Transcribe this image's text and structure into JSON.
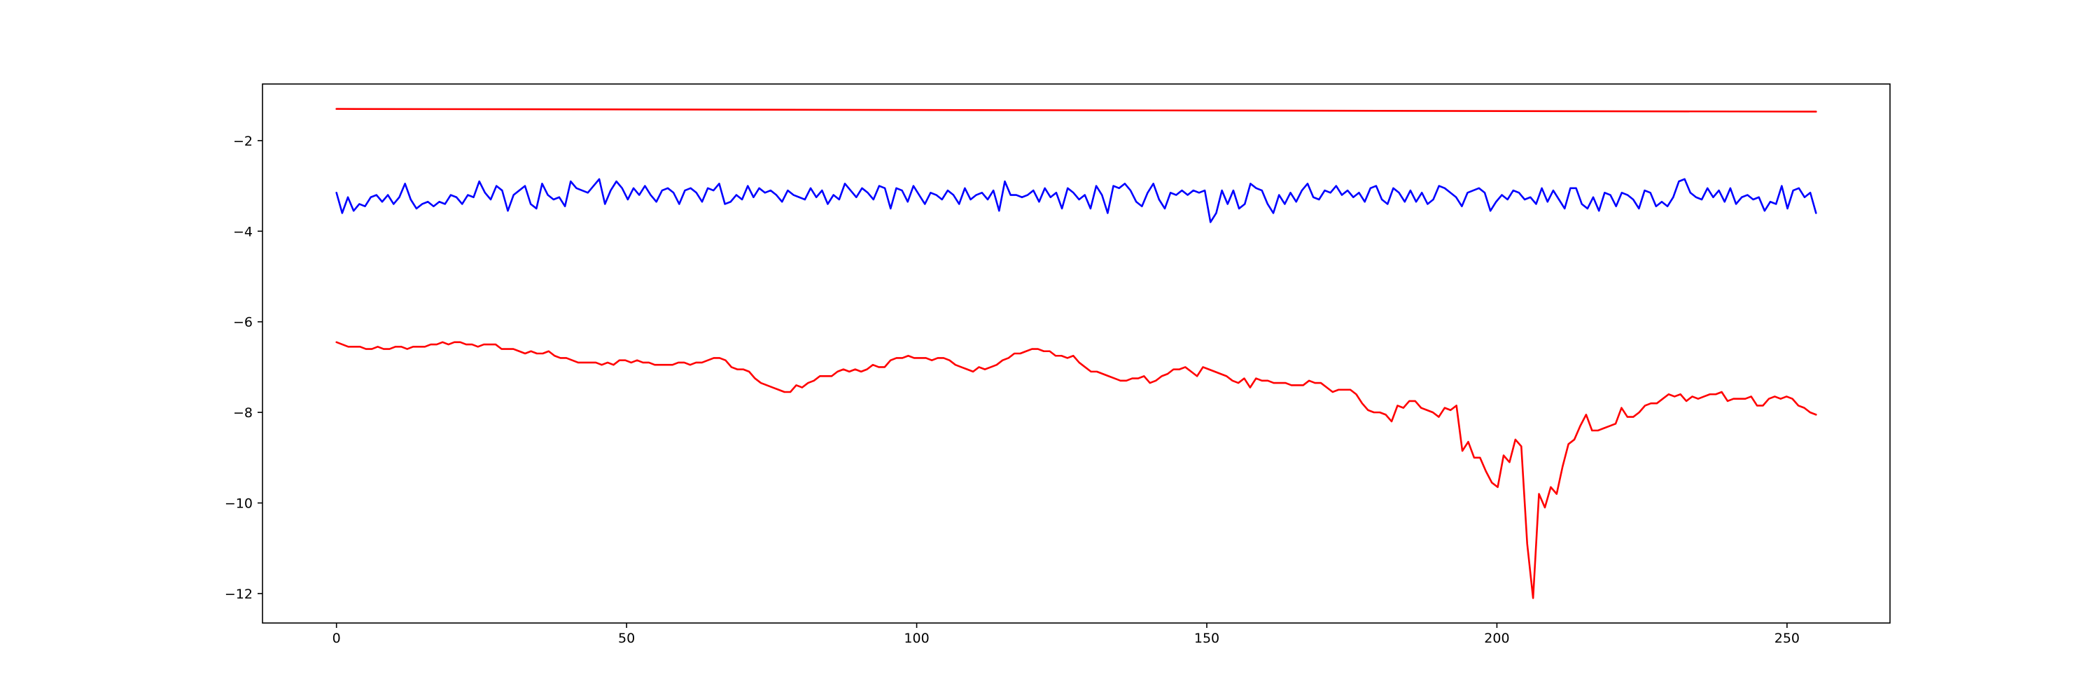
{
  "chart_data": {
    "type": "line",
    "title": "",
    "xlabel": "",
    "ylabel": "",
    "xlim": [
      -12.75,
      267.75
    ],
    "ylim": [
      -12.65,
      -0.75
    ],
    "grid": false,
    "legend": false,
    "x_ticks": [
      {
        "value": 0,
        "label": "0"
      },
      {
        "value": 50,
        "label": "50"
      },
      {
        "value": 100,
        "label": "100"
      },
      {
        "value": 150,
        "label": "150"
      },
      {
        "value": 200,
        "label": "200"
      },
      {
        "value": 250,
        "label": "250"
      }
    ],
    "y_ticks": [
      {
        "value": -2,
        "label": "−2"
      },
      {
        "value": -4,
        "label": "−4"
      },
      {
        "value": -6,
        "label": "−6"
      },
      {
        "value": -8,
        "label": "−8"
      },
      {
        "value": -10,
        "label": "−10"
      },
      {
        "value": -12,
        "label": "−12"
      }
    ],
    "series": [
      {
        "color": "#ff0000",
        "x_start": 0,
        "x_end": 255,
        "values": [
          -1.3,
          -1.36
        ]
      },
      {
        "color": "#0000ff",
        "x_start": 0,
        "x_end": 255,
        "values": [
          -3.15,
          -3.6,
          -3.25,
          -3.55,
          -3.4,
          -3.45,
          -3.25,
          -3.2,
          -3.35,
          -3.2,
          -3.4,
          -3.25,
          -2.95,
          -3.3,
          -3.5,
          -3.4,
          -3.35,
          -3.45,
          -3.35,
          -3.4,
          -3.2,
          -3.25,
          -3.4,
          -3.2,
          -3.25,
          -2.9,
          -3.15,
          -3.3,
          -3.0,
          -3.1,
          -3.55,
          -3.2,
          -3.1,
          -3.0,
          -3.4,
          -3.5,
          -2.95,
          -3.2,
          -3.3,
          -3.25,
          -3.45,
          -2.9,
          -3.05,
          -3.1,
          -3.15,
          -3.0,
          -2.85,
          -3.4,
          -3.1,
          -2.9,
          -3.05,
          -3.3,
          -3.05,
          -3.2,
          -3.0,
          -3.2,
          -3.35,
          -3.1,
          -3.05,
          -3.15,
          -3.4,
          -3.1,
          -3.05,
          -3.15,
          -3.35,
          -3.05,
          -3.1,
          -2.95,
          -3.4,
          -3.35,
          -3.2,
          -3.3,
          -3.0,
          -3.25,
          -3.05,
          -3.15,
          -3.1,
          -3.2,
          -3.35,
          -3.1,
          -3.2,
          -3.25,
          -3.3,
          -3.05,
          -3.25,
          -3.1,
          -3.4,
          -3.2,
          -3.3,
          -2.95,
          -3.1,
          -3.25,
          -3.05,
          -3.15,
          -3.3,
          -3.0,
          -3.05,
          -3.5,
          -3.05,
          -3.1,
          -3.35,
          -3.0,
          -3.2,
          -3.4,
          -3.15,
          -3.2,
          -3.3,
          -3.1,
          -3.2,
          -3.4,
          -3.05,
          -3.3,
          -3.2,
          -3.15,
          -3.3,
          -3.1,
          -3.55,
          -2.9,
          -3.2,
          -3.2,
          -3.25,
          -3.2,
          -3.1,
          -3.35,
          -3.05,
          -3.25,
          -3.15,
          -3.5,
          -3.05,
          -3.15,
          -3.3,
          -3.2,
          -3.5,
          -3.0,
          -3.2,
          -3.6,
          -3.0,
          -3.05,
          -2.95,
          -3.1,
          -3.35,
          -3.45,
          -3.15,
          -2.95,
          -3.3,
          -3.5,
          -3.15,
          -3.2,
          -3.1,
          -3.2,
          -3.1,
          -3.15,
          -3.1,
          -3.8,
          -3.6,
          -3.1,
          -3.4,
          -3.1,
          -3.5,
          -3.4,
          -2.95,
          -3.05,
          -3.1,
          -3.4,
          -3.6,
          -3.2,
          -3.4,
          -3.15,
          -3.35,
          -3.1,
          -2.95,
          -3.25,
          -3.3,
          -3.1,
          -3.15,
          -3.0,
          -3.2,
          -3.1,
          -3.25,
          -3.15,
          -3.35,
          -3.05,
          -3.0,
          -3.3,
          -3.4,
          -3.05,
          -3.15,
          -3.35,
          -3.1,
          -3.35,
          -3.15,
          -3.4,
          -3.3,
          -3.0,
          -3.05,
          -3.15,
          -3.25,
          -3.45,
          -3.15,
          -3.1,
          -3.05,
          -3.15,
          -3.55,
          -3.35,
          -3.2,
          -3.3,
          -3.1,
          -3.15,
          -3.3,
          -3.25,
          -3.4,
          -3.05,
          -3.35,
          -3.1,
          -3.3,
          -3.5,
          -3.05,
          -3.05,
          -3.4,
          -3.5,
          -3.25,
          -3.55,
          -3.15,
          -3.2,
          -3.45,
          -3.15,
          -3.2,
          -3.3,
          -3.5,
          -3.1,
          -3.15,
          -3.45,
          -3.35,
          -3.45,
          -3.25,
          -2.9,
          -2.85,
          -3.15,
          -3.25,
          -3.3,
          -3.05,
          -3.25,
          -3.1,
          -3.35,
          -3.05,
          -3.4,
          -3.25,
          -3.2,
          -3.3,
          -3.25,
          -3.55,
          -3.35,
          -3.4,
          -3.0,
          -3.5,
          -3.1,
          -3.05,
          -3.25,
          -3.15,
          -3.6
        ]
      },
      {
        "color": "#ff0000",
        "x_start": 0,
        "x_end": 255,
        "values": [
          -6.45,
          -6.5,
          -6.55,
          -6.55,
          -6.55,
          -6.6,
          -6.6,
          -6.55,
          -6.6,
          -6.6,
          -6.55,
          -6.55,
          -6.6,
          -6.55,
          -6.55,
          -6.55,
          -6.5,
          -6.5,
          -6.45,
          -6.5,
          -6.45,
          -6.45,
          -6.5,
          -6.5,
          -6.55,
          -6.5,
          -6.5,
          -6.5,
          -6.6,
          -6.6,
          -6.6,
          -6.65,
          -6.7,
          -6.65,
          -6.7,
          -6.7,
          -6.65,
          -6.75,
          -6.8,
          -6.8,
          -6.85,
          -6.9,
          -6.9,
          -6.9,
          -6.9,
          -6.95,
          -6.9,
          -6.95,
          -6.85,
          -6.85,
          -6.9,
          -6.85,
          -6.9,
          -6.9,
          -6.95,
          -6.95,
          -6.95,
          -6.95,
          -6.9,
          -6.9,
          -6.95,
          -6.9,
          -6.9,
          -6.85,
          -6.8,
          -6.8,
          -6.85,
          -7.0,
          -7.05,
          -7.05,
          -7.1,
          -7.25,
          -7.35,
          -7.4,
          -7.45,
          -7.5,
          -7.55,
          -7.55,
          -7.4,
          -7.45,
          -7.35,
          -7.3,
          -7.2,
          -7.2,
          -7.2,
          -7.1,
          -7.05,
          -7.1,
          -7.05,
          -7.1,
          -7.05,
          -6.95,
          -7.0,
          -7.0,
          -6.85,
          -6.8,
          -6.8,
          -6.75,
          -6.8,
          -6.8,
          -6.8,
          -6.85,
          -6.8,
          -6.8,
          -6.85,
          -6.95,
          -7.0,
          -7.05,
          -7.1,
          -7.0,
          -7.05,
          -7.0,
          -6.95,
          -6.85,
          -6.8,
          -6.7,
          -6.7,
          -6.65,
          -6.6,
          -6.6,
          -6.65,
          -6.65,
          -6.75,
          -6.75,
          -6.8,
          -6.75,
          -6.9,
          -7.0,
          -7.1,
          -7.1,
          -7.15,
          -7.2,
          -7.25,
          -7.3,
          -7.3,
          -7.25,
          -7.25,
          -7.2,
          -7.35,
          -7.3,
          -7.2,
          -7.15,
          -7.05,
          -7.05,
          -7.0,
          -7.1,
          -7.2,
          -7.0,
          -7.05,
          -7.1,
          -7.15,
          -7.2,
          -7.3,
          -7.35,
          -7.25,
          -7.45,
          -7.25,
          -7.3,
          -7.3,
          -7.35,
          -7.35,
          -7.35,
          -7.4,
          -7.4,
          -7.4,
          -7.3,
          -7.35,
          -7.35,
          -7.45,
          -7.55,
          -7.5,
          -7.5,
          -7.5,
          -7.6,
          -7.8,
          -7.95,
          -8.0,
          -8.0,
          -8.05,
          -8.2,
          -7.85,
          -7.9,
          -7.75,
          -7.75,
          -7.9,
          -7.95,
          -8.0,
          -8.1,
          -7.9,
          -7.95,
          -7.85,
          -8.85,
          -8.65,
          -9.0,
          -9.0,
          -9.3,
          -9.55,
          -9.65,
          -8.95,
          -9.1,
          -8.6,
          -8.75,
          -10.9,
          -12.1,
          -9.8,
          -10.1,
          -9.65,
          -9.8,
          -9.2,
          -8.7,
          -8.6,
          -8.3,
          -8.05,
          -8.4,
          -8.4,
          -8.35,
          -8.3,
          -8.25,
          -7.9,
          -8.1,
          -8.1,
          -8.0,
          -7.85,
          -7.8,
          -7.8,
          -7.7,
          -7.6,
          -7.65,
          -7.6,
          -7.75,
          -7.65,
          -7.7,
          -7.65,
          -7.6,
          -7.6,
          -7.55,
          -7.75,
          -7.7,
          -7.7,
          -7.7,
          -7.65,
          -7.85,
          -7.85,
          -7.7,
          -7.65,
          -7.7,
          -7.65,
          -7.7,
          -7.85,
          -7.9,
          -8.0,
          -8.05
        ]
      }
    ]
  }
}
